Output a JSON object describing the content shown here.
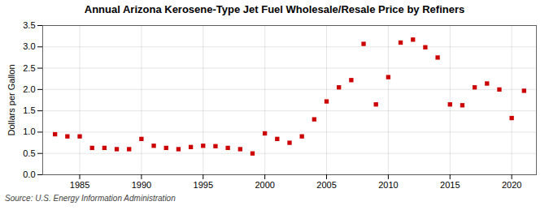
{
  "chart_data": {
    "type": "scatter",
    "title": "Annual Arizona Kerosene-Type Jet Fuel Wholesale/Resale Price by Refiners",
    "ylabel": "Dollars per Gallon",
    "source": "Source: U.S. Energy Information Administration",
    "x": [
      1983,
      1984,
      1985,
      1986,
      1987,
      1988,
      1989,
      1990,
      1991,
      1992,
      1993,
      1994,
      1995,
      1996,
      1997,
      1998,
      1999,
      2000,
      2001,
      2002,
      2003,
      2004,
      2005,
      2006,
      2007,
      2008,
      2009,
      2010,
      2011,
      2012,
      2013,
      2014,
      2015,
      2016,
      2017,
      2018,
      2019,
      2020,
      2021
    ],
    "values": [
      0.95,
      0.9,
      0.9,
      0.63,
      0.63,
      0.6,
      0.6,
      0.84,
      0.68,
      0.63,
      0.6,
      0.65,
      0.68,
      0.67,
      0.63,
      0.6,
      0.5,
      0.97,
      0.84,
      0.75,
      0.9,
      1.3,
      1.72,
      2.05,
      2.22,
      3.07,
      1.65,
      2.29,
      3.1,
      3.17,
      2.99,
      2.75,
      1.65,
      1.63,
      2.05,
      2.14,
      2.0,
      1.33,
      1.97
    ],
    "color": "#cc0000",
    "marker": "square",
    "xlim": [
      1982,
      2022
    ],
    "xticks": [
      1985,
      1990,
      1995,
      2000,
      2005,
      2010,
      2015,
      2020
    ],
    "ylim": [
      0.0,
      3.5
    ],
    "yticks": [
      {
        "value": 0,
        "label": "0.0"
      },
      0.5,
      {
        "value": 1,
        "label": "1.0"
      },
      1.5,
      {
        "value": 2,
        "label": "2.0"
      },
      2.5,
      {
        "value": 3,
        "label": "3.0"
      },
      3.5
    ],
    "grid": true
  }
}
